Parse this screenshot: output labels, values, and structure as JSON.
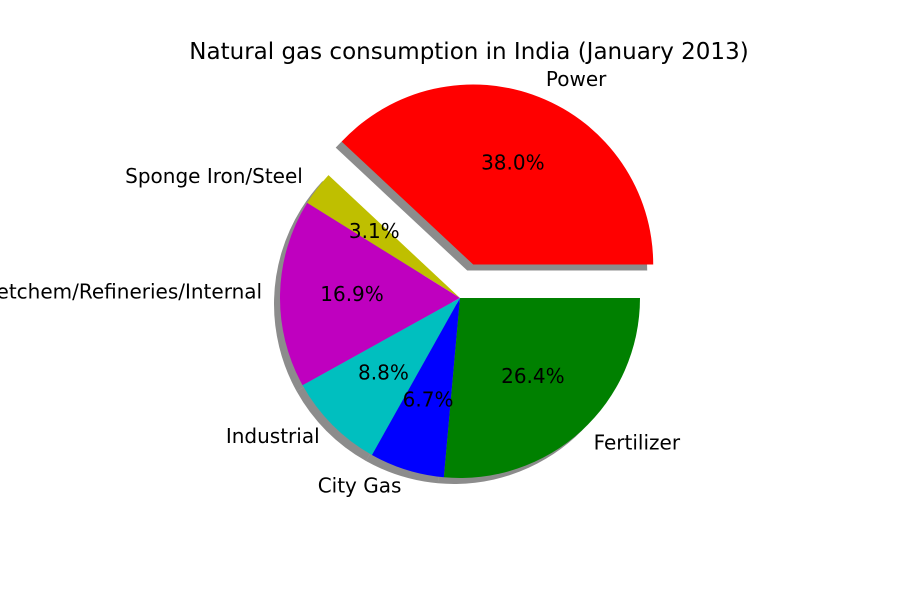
{
  "chart_data": {
    "type": "pie",
    "title": "Natural gas consumption in India (January 2013)",
    "slices": [
      {
        "label": "Power",
        "value": 38.0,
        "pct_label": "38.0%",
        "color": "#ff0000",
        "explode": true
      },
      {
        "label": "Sponge Iron/Steel",
        "value": 3.1,
        "pct_label": "3.1%",
        "color": "#bfbf00",
        "explode": false
      },
      {
        "label": "Petchem/Refineries/Internal",
        "value": 16.9,
        "pct_label": "16.9%",
        "color": "#bf00bf",
        "explode": false
      },
      {
        "label": "Industrial",
        "value": 8.8,
        "pct_label": "8.8%",
        "color": "#00bfbf",
        "explode": false
      },
      {
        "label": "City Gas",
        "value": 6.7,
        "pct_label": "6.7%",
        "color": "#0000ff",
        "explode": false
      },
      {
        "label": "Fertilizer",
        "value": 26.4,
        "pct_label": "26.4%",
        "color": "#008000",
        "explode": false
      }
    ],
    "start_angle_deg": 0,
    "counterclockwise": true,
    "shadow": true,
    "legend": "none"
  }
}
